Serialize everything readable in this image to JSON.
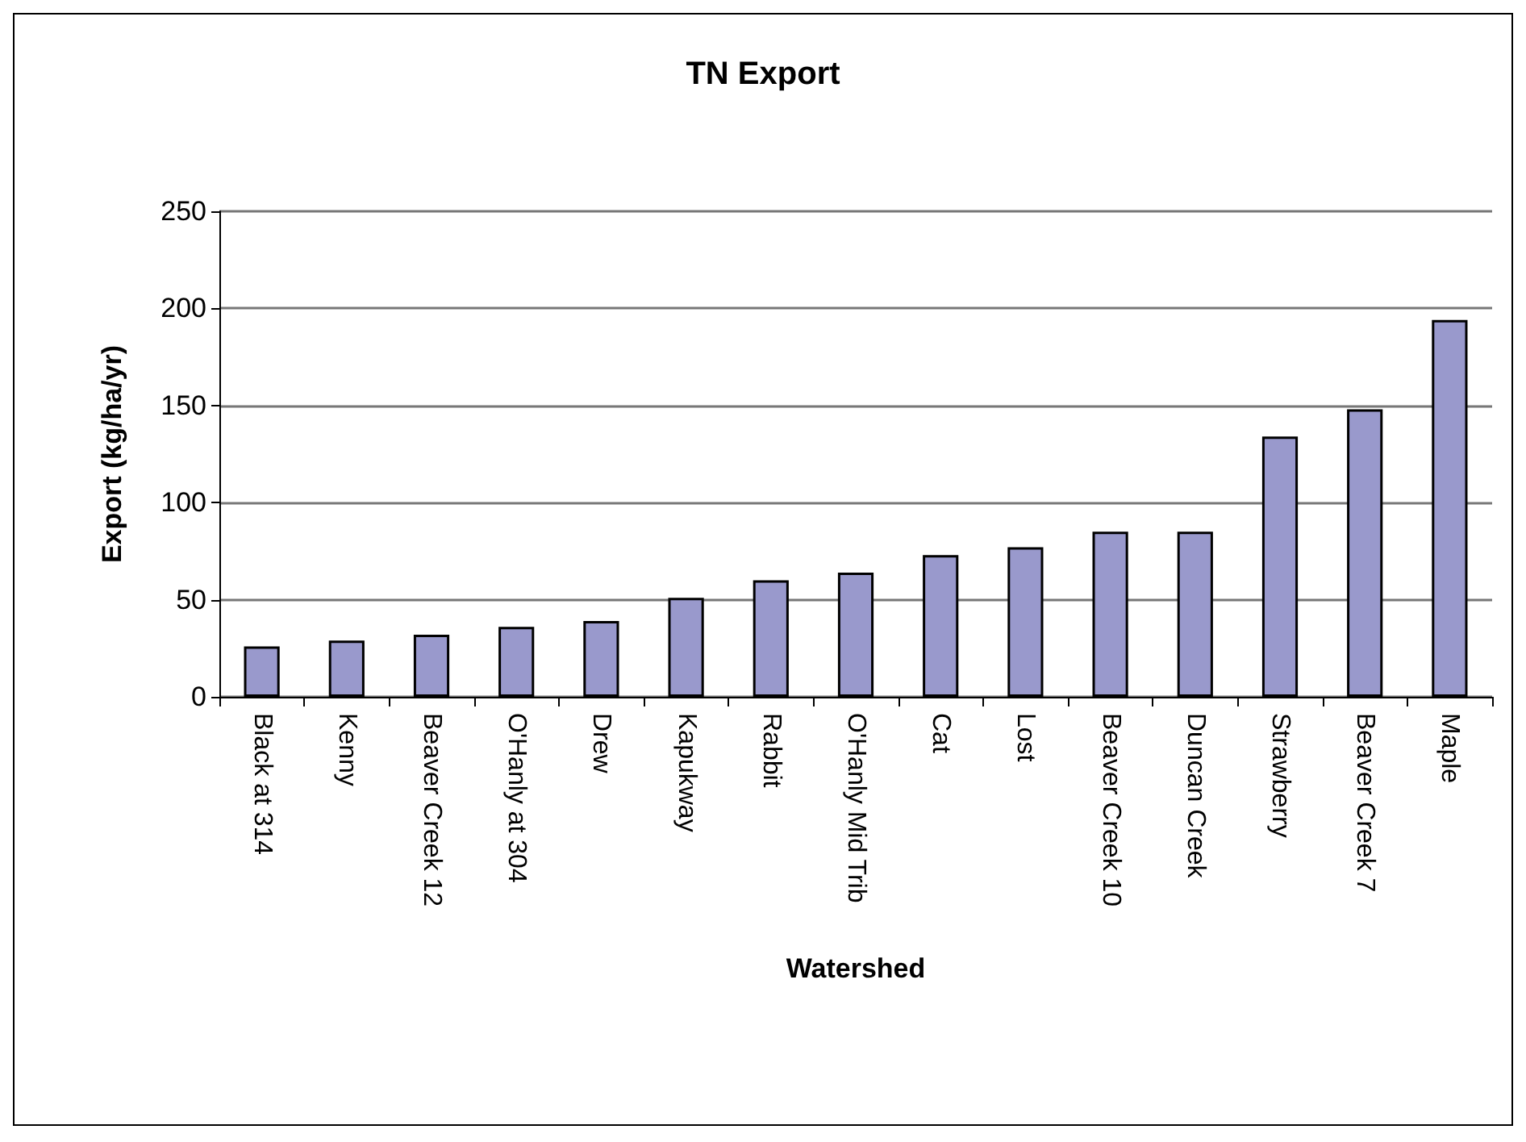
{
  "chart_data": {
    "type": "bar",
    "title": "TN Export",
    "xlabel": "Watershed",
    "ylabel": "Export (kg/ha/yr)",
    "categories": [
      "Black at 314",
      "Kenny",
      "Beaver Creek 12",
      "O'Hanly at 304",
      "Drew",
      "Kapukway",
      "Rabbit",
      "O'Hanly Mid Trib",
      "Cat",
      "Lost",
      "Beaver Creek 10",
      "Duncan Creek",
      "Strawberry",
      "Beaver Creek 7",
      "Maple"
    ],
    "values": [
      26,
      29,
      32,
      36,
      39,
      51,
      60,
      64,
      73,
      77,
      85,
      85,
      134,
      148,
      194
    ],
    "color": "#9999cc",
    "ylim": [
      0,
      250
    ],
    "yticks": [
      0,
      50,
      100,
      150,
      200,
      250
    ],
    "grid": "y"
  }
}
